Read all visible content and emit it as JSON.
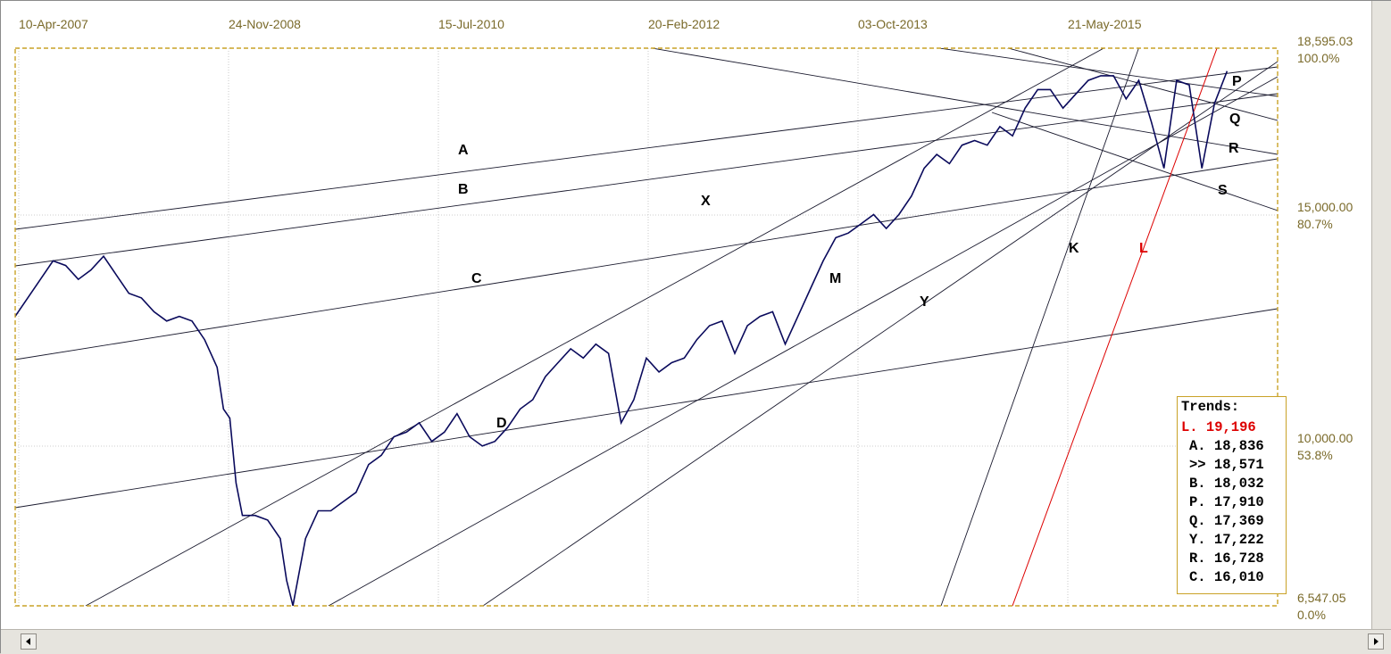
{
  "colors": {
    "price": "#0a0a5c",
    "trendline": "#1a1a2e",
    "red_trend": "#dd0000",
    "plot_border": "#c9a227",
    "axis_text": "#7a6a2a"
  },
  "chart_data": {
    "type": "line",
    "title": "",
    "x_dates": [
      "10-Apr-2007",
      "24-Nov-2008",
      "15-Jul-2010",
      "20-Feb-2012",
      "03-Oct-2013",
      "21-May-2015"
    ],
    "y_ticks": [
      {
        "value": "18,595.03",
        "pct": "100.0%"
      },
      {
        "value": "15,000.00",
        "pct": "80.7%"
      },
      {
        "value": "10,000.00",
        "pct": "53.8%"
      },
      {
        "value": "6,547.05",
        "pct": "0.0%"
      }
    ],
    "ylim": [
      6547.05,
      18595.03
    ],
    "grid": true,
    "series": [
      {
        "x": [
          0,
          0.02,
          0.03,
          0.04,
          0.05,
          0.06,
          0.07,
          0.08,
          0.09,
          0.1,
          0.11,
          0.12,
          0.13,
          0.14,
          0.15,
          0.16,
          0.165,
          0.17,
          0.175,
          0.18,
          0.19,
          0.2,
          0.21,
          0.215,
          0.22,
          0.23,
          0.24,
          0.25,
          0.26,
          0.27,
          0.28,
          0.29,
          0.3,
          0.31,
          0.32,
          0.33,
          0.34,
          0.35,
          0.36,
          0.37,
          0.38,
          0.39,
          0.4,
          0.41,
          0.42,
          0.43,
          0.44,
          0.45,
          0.46,
          0.47,
          0.48,
          0.49,
          0.5,
          0.51,
          0.52,
          0.53,
          0.54,
          0.55,
          0.56,
          0.57,
          0.58,
          0.59,
          0.6,
          0.61,
          0.62,
          0.63,
          0.64,
          0.65,
          0.66,
          0.67,
          0.68,
          0.69,
          0.7,
          0.71,
          0.72,
          0.73,
          0.74,
          0.75,
          0.76,
          0.77,
          0.78,
          0.79,
          0.8,
          0.81,
          0.82,
          0.83,
          0.84,
          0.85,
          0.86,
          0.87,
          0.88,
          0.89,
          0.9,
          0.91,
          0.92,
          0.93,
          0.94,
          0.95,
          0.96
        ],
        "values": [
          12800,
          13600,
          14000,
          13900,
          13600,
          13800,
          14100,
          13700,
          13300,
          13200,
          12900,
          12700,
          12800,
          12700,
          12300,
          11700,
          10800,
          10600,
          9200,
          8500,
          8500,
          8400,
          8000,
          7100,
          6550,
          8000,
          8600,
          8600,
          8800,
          9000,
          9600,
          9800,
          10200,
          10300,
          10500,
          10100,
          10300,
          10700,
          10200,
          10000,
          10100,
          10400,
          10800,
          11000,
          11500,
          11800,
          12100,
          11900,
          12200,
          12000,
          10500,
          11000,
          11900,
          11600,
          11800,
          11900,
          12300,
          12600,
          12700,
          12000,
          12600,
          12800,
          12900,
          12200,
          12800,
          13400,
          14000,
          14500,
          14600,
          14800,
          15000,
          14700,
          15000,
          15400,
          16000,
          16300,
          16100,
          16500,
          16600,
          16500,
          16900,
          16700,
          17300,
          17700,
          17700,
          17300,
          17600,
          17900,
          18000,
          18000,
          17500,
          17900,
          17000,
          16000,
          17900,
          17800,
          16000,
          17400,
          18100
        ]
      }
    ],
    "trendline_labels": [
      "A",
      "B",
      "C",
      "D",
      "X",
      "M",
      "Y",
      "K",
      "L",
      "P",
      "Q",
      "R",
      "S"
    ],
    "trends_panel": {
      "title": "Trends:",
      "rows": [
        {
          "label": "L. 19,196",
          "red": true
        },
        {
          "label": "A. 18,836",
          "red": false
        },
        {
          "label": ">> 18,571",
          "red": false
        },
        {
          "label": "B. 18,032",
          "red": false
        },
        {
          "label": "P. 17,910",
          "red": false
        },
        {
          "label": "Q. 17,369",
          "red": false
        },
        {
          "label": "Y. 17,222",
          "red": false
        },
        {
          "label": "R. 16,728",
          "red": false
        },
        {
          "label": "C. 16,010",
          "red": false
        }
      ]
    }
  }
}
